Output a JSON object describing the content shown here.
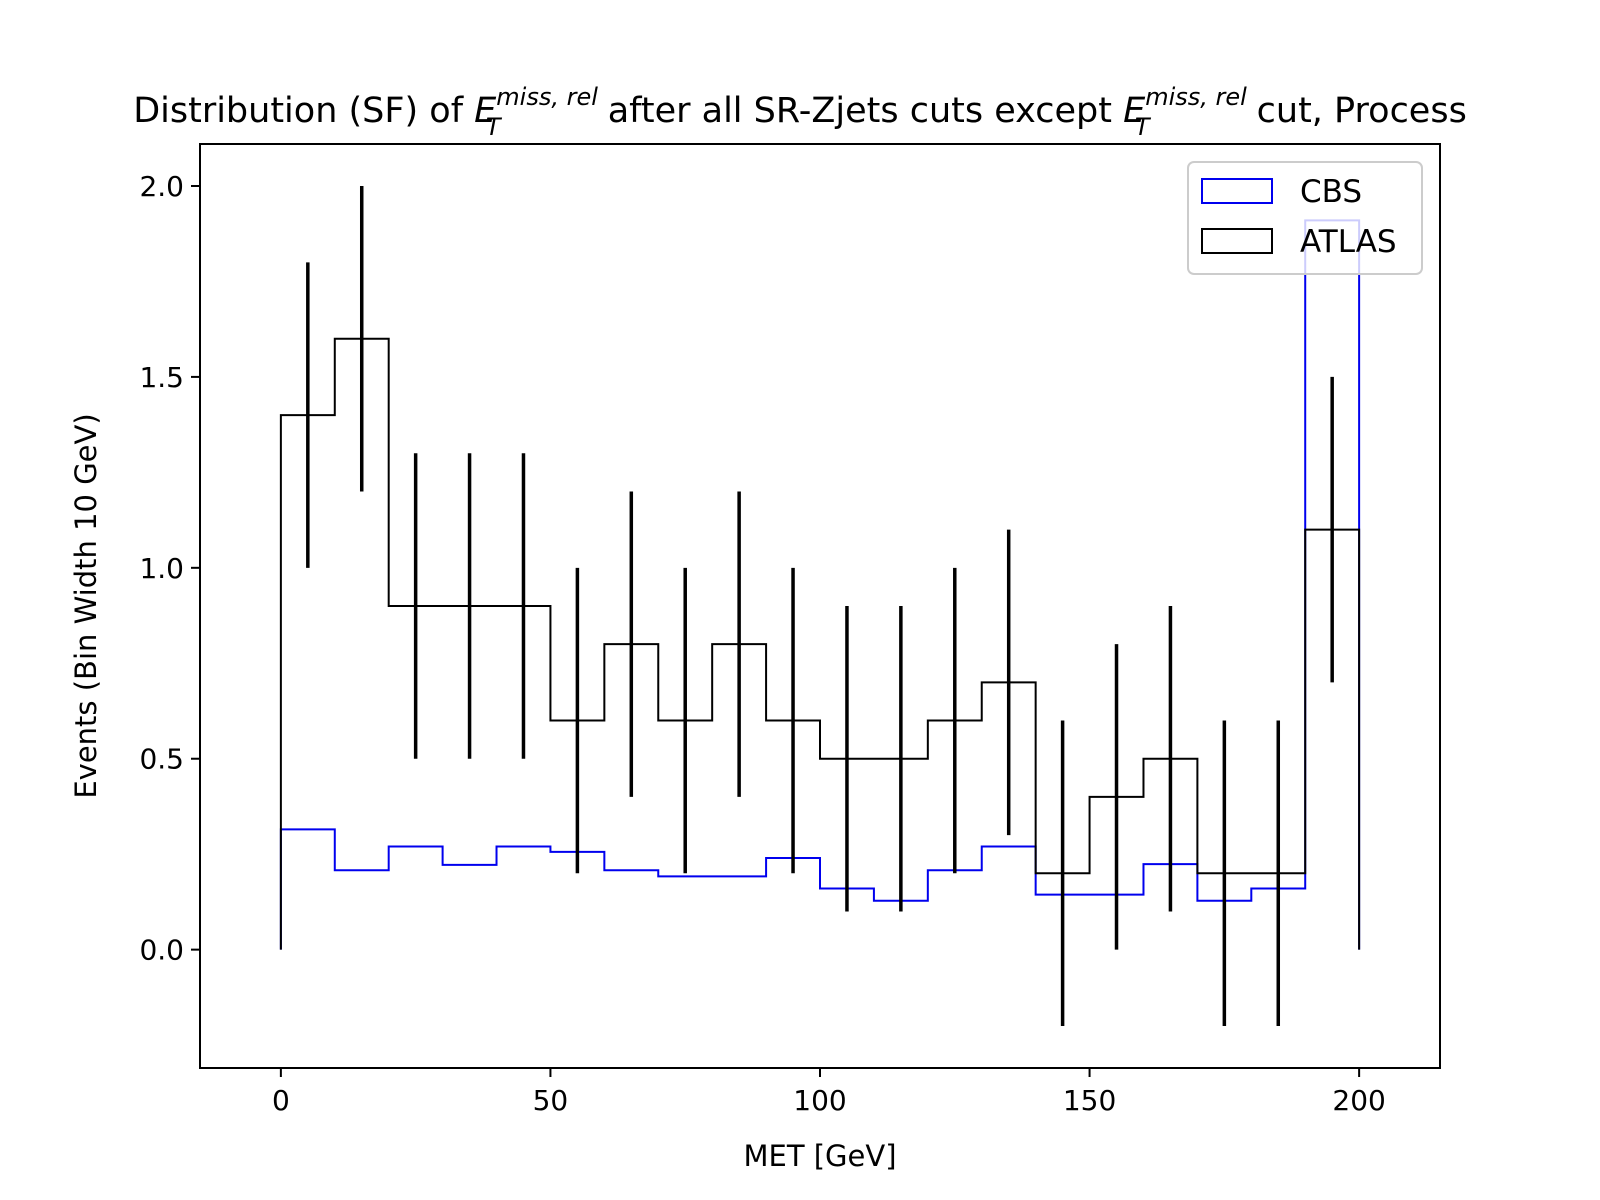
{
  "chart_data": {
    "type": "step",
    "title": {
      "prefix": "Distribution (SF) of ",
      "var_base": "E",
      "var_sub": "T",
      "var_sup": "miss, rel",
      "middle": " after all SR-Zjets cuts except ",
      "suffix": " cut, Process"
    },
    "xlabel": "MET [GeV]",
    "ylabel": "Events (Bin Width 10 GeV)",
    "xlim": [
      -15,
      215
    ],
    "ylim": [
      -0.31,
      2.11
    ],
    "xticks": [
      0,
      50,
      100,
      150,
      200
    ],
    "xtick_labels": [
      "0",
      "50",
      "100",
      "150",
      "200"
    ],
    "yticks": [
      0.0,
      0.5,
      1.0,
      1.5,
      2.0
    ],
    "ytick_labels": [
      "0.0",
      "0.5",
      "1.0",
      "1.5",
      "2.0"
    ],
    "bin_edges": [
      0,
      10,
      20,
      30,
      40,
      50,
      60,
      70,
      80,
      90,
      100,
      110,
      120,
      130,
      140,
      150,
      160,
      170,
      180,
      190,
      200
    ],
    "legend_position": "top-right",
    "series": [
      {
        "name": "CBS",
        "color": "#0000ee",
        "values": [
          0.315,
          0.208,
          0.27,
          0.222,
          0.27,
          0.256,
          0.208,
          0.192,
          0.192,
          0.24,
          0.16,
          0.128,
          0.208,
          0.27,
          0.144,
          0.144,
          0.224,
          0.128,
          0.16,
          1.91
        ]
      },
      {
        "name": "ATLAS",
        "color": "#000000",
        "values": [
          1.4,
          1.6,
          0.9,
          0.9,
          0.9,
          0.6,
          0.8,
          0.6,
          0.8,
          0.6,
          0.5,
          0.5,
          0.6,
          0.7,
          0.2,
          0.4,
          0.5,
          0.2,
          0.2,
          1.1
        ],
        "errors": [
          0.4,
          0.4,
          0.4,
          0.4,
          0.4,
          0.4,
          0.4,
          0.4,
          0.4,
          0.4,
          0.4,
          0.4,
          0.4,
          0.4,
          0.4,
          0.4,
          0.4,
          0.4,
          0.4,
          0.4
        ],
        "error_x": [
          5,
          15,
          25,
          35,
          45,
          55,
          65,
          75,
          85,
          95,
          105,
          115,
          125,
          135,
          145,
          155,
          165,
          175,
          185,
          195
        ]
      }
    ]
  }
}
